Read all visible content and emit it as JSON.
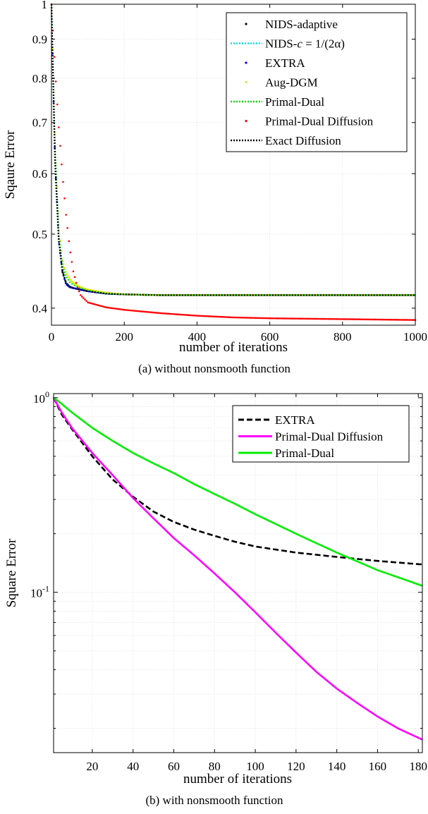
{
  "chart_data": [
    {
      "type": "line",
      "panel_caption": "(a) without nonsmooth function",
      "xlabel": "number of iterations",
      "ylabel": "Sqaure Error",
      "xlim": [
        0,
        1000
      ],
      "ylim": [
        0.38,
        1.0
      ],
      "yscale": "log",
      "x_ticks": [
        0,
        200,
        400,
        600,
        800,
        1000
      ],
      "y_ticks": [
        0.4,
        0.5,
        0.6,
        0.7,
        0.8,
        0.9,
        1
      ],
      "grid": true,
      "legend_location": "top-right",
      "series": [
        {
          "name": "NIDS-adaptive",
          "color": "#000000",
          "style": "dots",
          "x": [
            0,
            5,
            10,
            20,
            30,
            40,
            50,
            60,
            80,
            100,
            150,
            200,
            300,
            400,
            600,
            800,
            1000
          ],
          "y": [
            1.0,
            0.78,
            0.62,
            0.49,
            0.448,
            0.432,
            0.427,
            0.425,
            0.423,
            0.421,
            0.418,
            0.417,
            0.416,
            0.416,
            0.416,
            0.416,
            0.416
          ]
        },
        {
          "name": "NIDS-c = 1/(2α)",
          "color": "#00e5ee",
          "style": "dotted",
          "x": [
            0,
            5,
            10,
            20,
            30,
            40,
            50,
            60,
            80,
            100,
            150,
            200,
            300,
            400,
            600,
            800,
            1000
          ],
          "y": [
            1.0,
            0.78,
            0.62,
            0.49,
            0.448,
            0.432,
            0.427,
            0.425,
            0.423,
            0.421,
            0.418,
            0.417,
            0.416,
            0.416,
            0.416,
            0.416,
            0.416
          ]
        },
        {
          "name": "EXTRA",
          "color": "#0000ff",
          "style": "dots",
          "x": [
            0,
            5,
            10,
            20,
            30,
            40,
            50,
            60,
            80,
            100,
            150,
            200,
            300,
            400,
            600,
            800,
            1000
          ],
          "y": [
            1.0,
            0.78,
            0.62,
            0.49,
            0.446,
            0.43,
            0.426,
            0.425,
            0.423,
            0.421,
            0.418,
            0.417,
            0.416,
            0.416,
            0.416,
            0.416,
            0.416
          ]
        },
        {
          "name": "Aug-DGM",
          "color": "#e8e800",
          "style": "dots",
          "x": [
            0,
            5,
            10,
            20,
            30,
            40,
            50,
            60,
            80,
            100,
            150,
            200,
            300,
            400,
            600,
            800,
            1000
          ],
          "y": [
            1.0,
            0.8,
            0.65,
            0.51,
            0.462,
            0.445,
            0.437,
            0.432,
            0.426,
            0.423,
            0.419,
            0.417,
            0.416,
            0.416,
            0.416,
            0.416,
            0.416
          ]
        },
        {
          "name": "Primal-Dual",
          "color": "#00dd00",
          "style": "dotted",
          "x": [
            0,
            5,
            10,
            20,
            30,
            40,
            50,
            60,
            80,
            100,
            150,
            200,
            300,
            400,
            600,
            800,
            1000
          ],
          "y": [
            1.0,
            0.79,
            0.64,
            0.5,
            0.456,
            0.44,
            0.433,
            0.429,
            0.425,
            0.422,
            0.418,
            0.417,
            0.416,
            0.416,
            0.416,
            0.416,
            0.416
          ]
        },
        {
          "name": "Primal-Dual Diffusion",
          "color": "#ff0000",
          "style": "dots",
          "x": [
            0,
            10,
            20,
            30,
            40,
            50,
            60,
            70,
            80,
            100,
            150,
            200,
            300,
            400,
            500,
            600,
            800,
            1000
          ],
          "y": [
            1.0,
            0.82,
            0.69,
            0.6,
            0.53,
            0.48,
            0.447,
            0.428,
            0.416,
            0.407,
            0.401,
            0.398,
            0.394,
            0.391,
            0.389,
            0.388,
            0.387,
            0.386
          ]
        },
        {
          "name": "Exact Diffusion",
          "color": "#000000",
          "style": "dotted",
          "x": [
            0,
            5,
            10,
            20,
            30,
            40,
            50,
            60,
            80,
            100,
            150,
            200,
            300,
            400,
            600,
            800,
            1000
          ],
          "y": [
            1.0,
            0.78,
            0.62,
            0.49,
            0.447,
            0.431,
            0.427,
            0.425,
            0.423,
            0.421,
            0.418,
            0.417,
            0.416,
            0.416,
            0.416,
            0.416,
            0.416
          ]
        }
      ]
    },
    {
      "type": "line",
      "panel_caption": "(b) with nonsmooth function",
      "xlabel": "number of iterations",
      "ylabel": "Square Error",
      "xlim": [
        1,
        182
      ],
      "ylim": [
        0.015,
        1.05
      ],
      "yscale": "log",
      "x_ticks": [
        20,
        40,
        60,
        80,
        100,
        120,
        140,
        160,
        180
      ],
      "grid": true,
      "legend_location": "top-right",
      "series": [
        {
          "name": "EXTRA",
          "color": "#000000",
          "style": "dashed",
          "x": [
            1,
            5,
            10,
            20,
            30,
            40,
            50,
            60,
            70,
            80,
            90,
            100,
            120,
            140,
            160,
            182
          ],
          "y": [
            1.0,
            0.82,
            0.69,
            0.5,
            0.38,
            0.31,
            0.26,
            0.23,
            0.21,
            0.195,
            0.182,
            0.172,
            0.16,
            0.152,
            0.145,
            0.139
          ]
        },
        {
          "name": "Primal-Dual Diffusion",
          "color": "#ff00ff",
          "style": "solid",
          "x": [
            1,
            5,
            10,
            20,
            30,
            40,
            50,
            60,
            70,
            80,
            90,
            100,
            110,
            120,
            130,
            140,
            150,
            160,
            170,
            182
          ],
          "y": [
            1.0,
            0.84,
            0.7,
            0.52,
            0.4,
            0.305,
            0.24,
            0.19,
            0.155,
            0.125,
            0.1,
            0.079,
            0.062,
            0.049,
            0.039,
            0.032,
            0.027,
            0.023,
            0.02,
            0.0175
          ]
        },
        {
          "name": "Primal-Dual",
          "color": "#00ee00",
          "style": "solid",
          "x": [
            1,
            5,
            10,
            20,
            30,
            40,
            50,
            60,
            70,
            80,
            90,
            100,
            120,
            140,
            160,
            182
          ],
          "y": [
            1.0,
            0.93,
            0.84,
            0.7,
            0.6,
            0.52,
            0.46,
            0.41,
            0.36,
            0.32,
            0.285,
            0.252,
            0.2,
            0.16,
            0.13,
            0.108
          ]
        }
      ]
    }
  ]
}
